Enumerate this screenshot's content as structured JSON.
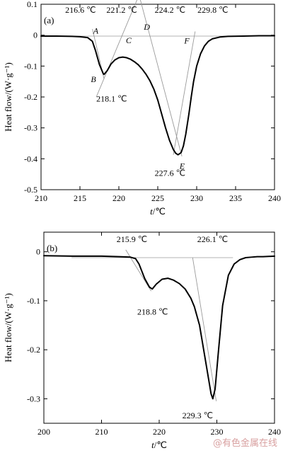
{
  "watermark": "@有色金属在线",
  "colors": {
    "curve": "#000000",
    "guide": "#9a9a9a",
    "axis": "#000000",
    "watermark": "#d8a0a0"
  },
  "chart_data": [
    {
      "type": "line",
      "panel_label": "(a)",
      "xlabel_var": "t",
      "xlabel_unit": "/℃",
      "ylabel": "Heat flow/(W·g⁻¹)",
      "xlim": [
        210,
        240
      ],
      "ylim": [
        -0.5,
        0.1
      ],
      "x_ticks": [
        210,
        215,
        220,
        225,
        230,
        235,
        240
      ],
      "y_ticks": [
        0.1,
        0,
        -0.1,
        -0.2,
        -0.3,
        -0.4,
        -0.5
      ],
      "y_tick_labels": [
        "0.1",
        "0",
        "-0.1",
        "-0.2",
        "-0.3",
        "-0.4",
        "-0.5"
      ],
      "series": [
        {
          "x": [
            210,
            212,
            214,
            215,
            216,
            216.6,
            217,
            217.5,
            218,
            218.1,
            218.5,
            219,
            219.5,
            220,
            220.5,
            221,
            221.5,
            222,
            222.5,
            223,
            223.5,
            224,
            224.5,
            225,
            225.5,
            226,
            226.5,
            227,
            227.3,
            227.6,
            228,
            228.3,
            228.6,
            229,
            229.3,
            229.6,
            230,
            230.5,
            231,
            231.5,
            232,
            233,
            234,
            236,
            238,
            240
          ],
          "y": [
            -0.003,
            -0.003,
            -0.004,
            -0.005,
            -0.008,
            -0.02,
            -0.05,
            -0.095,
            -0.125,
            -0.127,
            -0.115,
            -0.093,
            -0.08,
            -0.073,
            -0.071,
            -0.073,
            -0.078,
            -0.086,
            -0.096,
            -0.11,
            -0.127,
            -0.148,
            -0.175,
            -0.21,
            -0.255,
            -0.3,
            -0.34,
            -0.37,
            -0.382,
            -0.387,
            -0.38,
            -0.358,
            -0.32,
            -0.255,
            -0.2,
            -0.15,
            -0.1,
            -0.06,
            -0.035,
            -0.02,
            -0.012,
            -0.006,
            -0.004,
            -0.003,
            -0.002,
            -0.002
          ]
        }
      ],
      "baseline_y": -0.003,
      "guides": [
        {
          "x": [
            216.6,
            218.1
          ],
          "y": [
            0.02,
            -0.142
          ]
        },
        {
          "x": [
            217.1,
            223.1
          ],
          "y": [
            -0.2,
            0.16
          ]
        },
        {
          "x": [
            222.7,
            228.1
          ],
          "y": [
            0.12,
            -0.392
          ]
        },
        {
          "x": [
            227.0,
            229.8
          ],
          "y": [
            -0.387,
            0.012
          ]
        }
      ],
      "annotations": [
        {
          "text": "216.6 ℃",
          "x": 213.1,
          "y": 0.072
        },
        {
          "text": "221.2 ℃",
          "x": 218.4,
          "y": 0.072
        },
        {
          "text": "224.2 ℃",
          "x": 224.6,
          "y": 0.072
        },
        {
          "text": "229.8 ℃",
          "x": 230.1,
          "y": 0.072
        },
        {
          "text": "218.1 ℃",
          "x": 217.1,
          "y": -0.215
        },
        {
          "text": "227.6 ℃",
          "x": 224.6,
          "y": -0.455
        }
      ],
      "letters": [
        {
          "text": "A",
          "x": 216.7,
          "y": 0.005
        },
        {
          "text": "C",
          "x": 220.9,
          "y": -0.026
        },
        {
          "text": "D",
          "x": 223.2,
          "y": 0.018
        },
        {
          "text": "F",
          "x": 228.4,
          "y": -0.027
        },
        {
          "text": "B",
          "x": 216.4,
          "y": -0.152
        },
        {
          "text": "E",
          "x": 227.8,
          "y": -0.432
        }
      ]
    },
    {
      "type": "line",
      "panel_label": "(b)",
      "xlabel_var": "t",
      "xlabel_unit": "/℃",
      "ylabel": "Heat flow/(W·g⁻¹)",
      "xlim": [
        200,
        240
      ],
      "ylim": [
        -0.35,
        0.04
      ],
      "x_ticks": [
        200,
        210,
        220,
        230,
        240
      ],
      "y_ticks": [
        0,
        -0.1,
        -0.2,
        -0.3
      ],
      "y_tick_labels": [
        "0",
        "-0.1",
        "-0.2",
        "-0.3"
      ],
      "series": [
        {
          "x": [
            200,
            205,
            210,
            213,
            215,
            215.9,
            216.5,
            217.5,
            218.3,
            218.8,
            219.5,
            220.5,
            221.5,
            222.5,
            223.5,
            224.5,
            225.5,
            226.1,
            227,
            228,
            229,
            229.3,
            229.7,
            230.3,
            231,
            232,
            233,
            234,
            235,
            236,
            237,
            238,
            240
          ],
          "y": [
            -0.008,
            -0.009,
            -0.009,
            -0.01,
            -0.011,
            -0.014,
            -0.025,
            -0.055,
            -0.072,
            -0.076,
            -0.066,
            -0.056,
            -0.054,
            -0.058,
            -0.065,
            -0.076,
            -0.095,
            -0.112,
            -0.15,
            -0.22,
            -0.29,
            -0.3,
            -0.28,
            -0.2,
            -0.11,
            -0.048,
            -0.025,
            -0.016,
            -0.012,
            -0.011,
            -0.01,
            -0.01,
            -0.009
          ]
        }
      ],
      "baseline_y": -0.012,
      "guides": [
        {
          "x": [
            214.2,
            218.6
          ],
          "y": [
            0.004,
            -0.08
          ]
        },
        {
          "x": [
            225.8,
            229.9
          ],
          "y": [
            -0.012,
            -0.305
          ]
        }
      ],
      "annotations": [
        {
          "text": "215.9 ℃",
          "x": 212.6,
          "y": 0.02
        },
        {
          "text": "226.1 ℃",
          "x": 226.6,
          "y": 0.02
        },
        {
          "text": "218.8 ℃",
          "x": 216.2,
          "y": -0.128
        },
        {
          "text": "229.3 ℃",
          "x": 224.0,
          "y": -0.34
        }
      ]
    }
  ]
}
